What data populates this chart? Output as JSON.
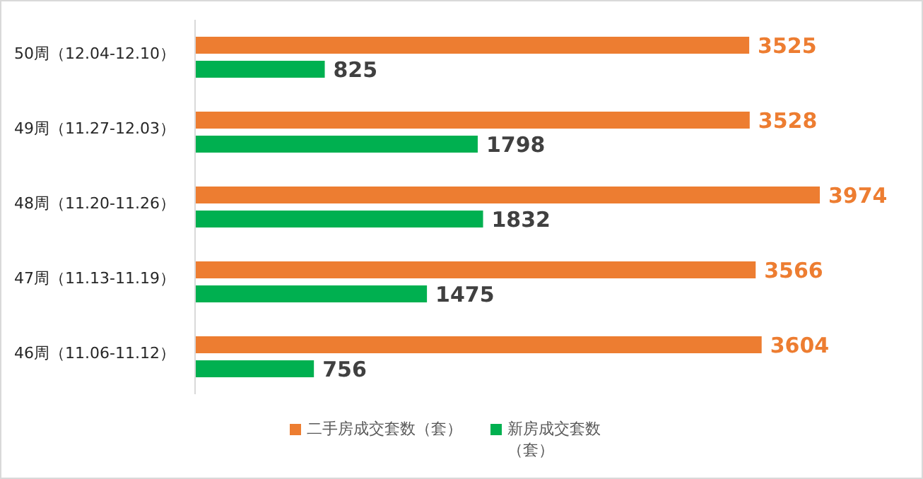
{
  "chart_data": {
    "type": "bar",
    "orientation": "horizontal",
    "data_labels": true,
    "legend": "bottom",
    "grid": false,
    "categories": [
      "50周（12.04-12.10）",
      "49周（11.27-12.03）",
      "48周（11.20-11.26）",
      "47周（11.13-11.19）",
      "46周（11.06-11.12）"
    ],
    "series": [
      {
        "name": "二手房成交套数（套）",
        "color": "#ed7d31",
        "values": [
          3525,
          3528,
          3974,
          3566,
          3604
        ]
      },
      {
        "name": "新房成交套数（套）",
        "color": "#00b050",
        "values": [
          825,
          1798,
          1832,
          1475,
          756
        ]
      }
    ]
  }
}
